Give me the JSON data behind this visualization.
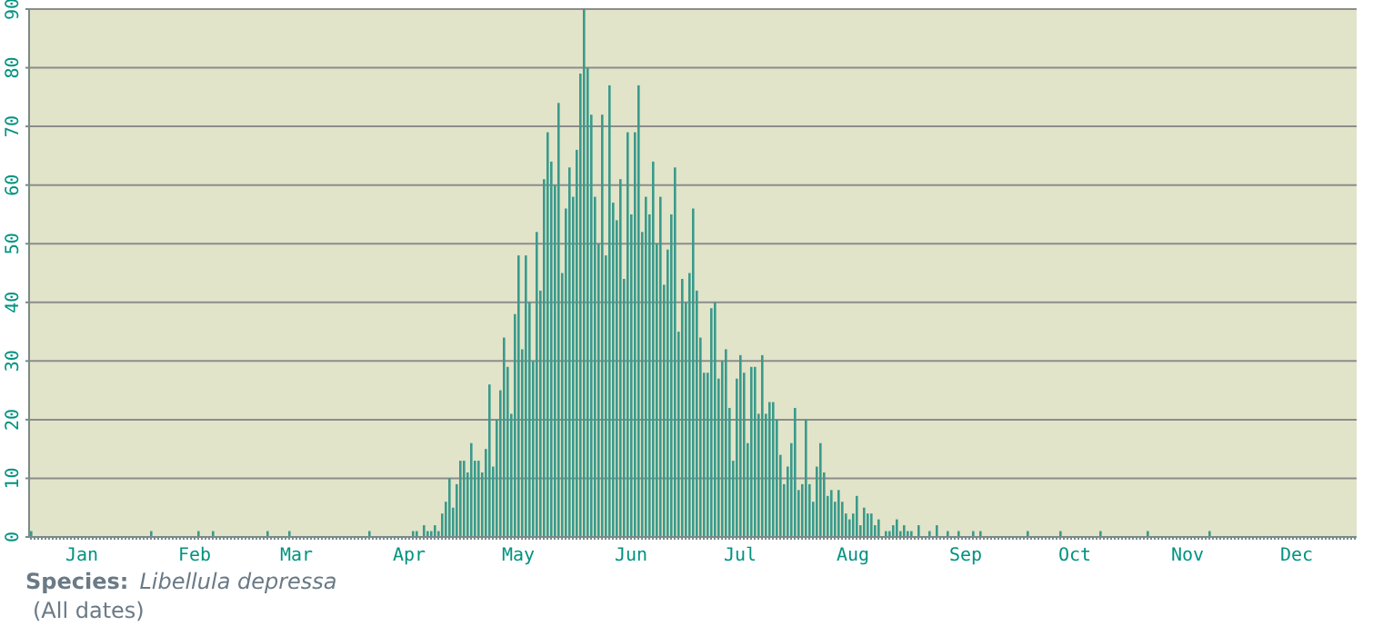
{
  "chart_data": {
    "type": "bar",
    "ylim": [
      0,
      90
    ],
    "yticks": [
      0,
      10,
      20,
      30,
      40,
      50,
      60,
      70,
      80,
      90
    ],
    "grid": "y",
    "annotations": [
      "Species:",
      "Libellula depressa",
      "(All dates)"
    ],
    "categories": [
      null,
      null,
      null,
      null,
      null,
      null,
      null,
      null,
      null,
      null,
      null,
      null,
      null,
      null,
      "Jan",
      null,
      null,
      null,
      null,
      null,
      null,
      null,
      null,
      null,
      null,
      null,
      null,
      null,
      null,
      null,
      null,
      null,
      null,
      null,
      null,
      null,
      null,
      null,
      null,
      null,
      null,
      null,
      null,
      null,
      null,
      "Feb",
      null,
      null,
      null,
      null,
      null,
      null,
      null,
      null,
      null,
      null,
      null,
      null,
      null,
      null,
      null,
      null,
      null,
      null,
      null,
      null,
      null,
      null,
      null,
      null,
      null,
      null,
      null,
      "Mar",
      null,
      null,
      null,
      null,
      null,
      null,
      null,
      null,
      null,
      null,
      null,
      null,
      null,
      null,
      null,
      null,
      null,
      null,
      null,
      null,
      null,
      null,
      null,
      null,
      null,
      null,
      null,
      null,
      null,
      null,
      "Apr",
      null,
      null,
      null,
      null,
      null,
      null,
      null,
      null,
      null,
      null,
      null,
      null,
      null,
      null,
      null,
      null,
      null,
      null,
      null,
      null,
      null,
      null,
      null,
      null,
      null,
      null,
      null,
      null,
      null,
      "May",
      null,
      null,
      null,
      null,
      null,
      null,
      null,
      null,
      null,
      null,
      null,
      null,
      null,
      null,
      null,
      null,
      null,
      null,
      null,
      null,
      null,
      null,
      null,
      null,
      null,
      null,
      null,
      null,
      null,
      null,
      "Jun",
      null,
      null,
      null,
      null,
      null,
      null,
      null,
      null,
      null,
      null,
      null,
      null,
      null,
      null,
      null,
      null,
      null,
      null,
      null,
      null,
      null,
      null,
      null,
      null,
      null,
      null,
      null,
      null,
      null,
      "Jul",
      null,
      null,
      null,
      null,
      null,
      null,
      null,
      null,
      null,
      null,
      null,
      null,
      null,
      null,
      null,
      null,
      null,
      null,
      null,
      null,
      null,
      null,
      null,
      null,
      null,
      null,
      null,
      null,
      null,
      null,
      "Aug",
      null,
      null,
      null,
      null,
      null,
      null,
      null,
      null,
      null,
      null,
      null,
      null,
      null,
      null,
      null,
      null,
      null,
      null,
      null,
      null,
      null,
      null,
      null,
      null,
      null,
      null,
      null,
      null,
      null,
      null,
      "Sep",
      null,
      null,
      null,
      null,
      null,
      null,
      null,
      null,
      null,
      null,
      null,
      null,
      null,
      null,
      null,
      null,
      null,
      null,
      null,
      null,
      null,
      null,
      null,
      null,
      null,
      null,
      null,
      null,
      null,
      "Oct",
      null,
      null,
      null,
      null,
      null,
      null,
      null,
      null,
      null,
      null,
      null,
      null,
      null,
      null,
      null,
      null,
      null,
      null,
      null,
      null,
      null,
      null,
      null,
      null,
      null,
      null,
      null,
      null,
      null,
      null,
      "Nov",
      null,
      null,
      null,
      null,
      null,
      null,
      null,
      null,
      null,
      null,
      null,
      null,
      null,
      null,
      null,
      null,
      null,
      null,
      null,
      null,
      null,
      null,
      null,
      null,
      null,
      null,
      null,
      null,
      null,
      "Dec",
      null,
      null,
      null,
      null,
      null,
      null,
      null,
      null,
      null,
      null,
      null,
      null,
      null,
      null,
      null,
      null
    ],
    "series": [
      {
        "color": "#3a9a8c",
        "values": [
          1,
          0,
          0,
          0,
          0,
          0,
          0,
          0,
          0,
          0,
          0,
          0,
          0,
          0,
          0,
          0,
          0,
          0,
          0,
          0,
          0,
          0,
          0,
          0,
          0,
          0,
          0,
          0,
          0,
          0,
          0,
          0,
          0,
          1,
          0,
          0,
          0,
          0,
          0,
          0,
          0,
          0,
          0,
          0,
          0,
          0,
          1,
          0,
          0,
          0,
          1,
          0,
          0,
          0,
          0,
          0,
          0,
          0,
          0,
          0,
          0,
          0,
          0,
          0,
          0,
          1,
          0,
          0,
          0,
          0,
          0,
          1,
          0,
          0,
          0,
          0,
          0,
          0,
          0,
          0,
          0,
          0,
          0,
          0,
          0,
          0,
          0,
          0,
          0,
          0,
          0,
          0,
          0,
          1,
          0,
          0,
          0,
          0,
          0,
          0,
          0,
          0,
          0,
          0,
          0,
          1,
          1,
          0,
          2,
          1,
          1,
          2,
          1,
          4,
          6,
          10,
          5,
          9,
          13,
          13,
          11,
          16,
          13,
          13,
          11,
          15,
          26,
          12,
          20,
          25,
          34,
          29,
          21,
          38,
          48,
          32,
          48,
          40,
          30,
          52,
          42,
          61,
          69,
          64,
          60,
          74,
          45,
          56,
          63,
          58,
          66,
          79,
          90,
          80,
          72,
          58,
          50,
          72,
          48,
          77,
          57,
          54,
          61,
          44,
          69,
          55,
          69,
          77,
          52,
          58,
          55,
          64,
          50,
          58,
          43,
          49,
          55,
          63,
          35,
          44,
          40,
          45,
          56,
          42,
          34,
          28,
          28,
          39,
          40,
          27,
          30,
          32,
          22,
          13,
          27,
          31,
          28,
          16,
          29,
          29,
          21,
          31,
          21,
          23,
          23,
          20,
          14,
          9,
          12,
          16,
          22,
          8,
          9,
          20,
          9,
          6,
          12,
          16,
          11,
          7,
          8,
          6,
          8,
          6,
          4,
          3,
          4,
          7,
          2,
          5,
          4,
          4,
          2,
          3,
          0,
          1,
          1,
          2,
          3,
          1,
          2,
          1,
          1,
          0,
          2,
          0,
          0,
          1,
          0,
          2,
          0,
          0,
          1,
          0,
          0,
          1,
          0,
          0,
          0,
          1,
          0,
          1,
          0,
          0,
          0,
          0,
          0,
          0,
          0,
          0,
          0,
          0,
          0,
          0,
          1,
          0,
          0,
          0,
          0,
          0,
          0,
          0,
          0,
          1,
          0,
          0,
          0,
          0,
          0,
          0,
          0,
          0,
          0,
          0,
          1,
          0,
          0,
          0,
          0,
          0,
          0,
          0,
          0,
          0,
          0,
          0,
          0,
          1,
          0,
          0,
          0,
          0,
          0,
          0,
          0,
          0,
          0,
          0,
          0,
          0,
          0,
          0,
          0,
          0,
          1,
          0,
          0,
          0,
          0,
          0,
          0,
          0,
          0,
          0,
          0,
          0,
          0,
          0,
          0,
          0,
          0,
          0,
          0,
          0,
          0,
          0,
          0,
          0,
          0,
          0,
          0,
          0,
          0,
          0,
          0,
          0,
          0,
          0,
          0,
          0,
          0,
          0,
          0,
          0,
          0
        ]
      }
    ]
  }
}
